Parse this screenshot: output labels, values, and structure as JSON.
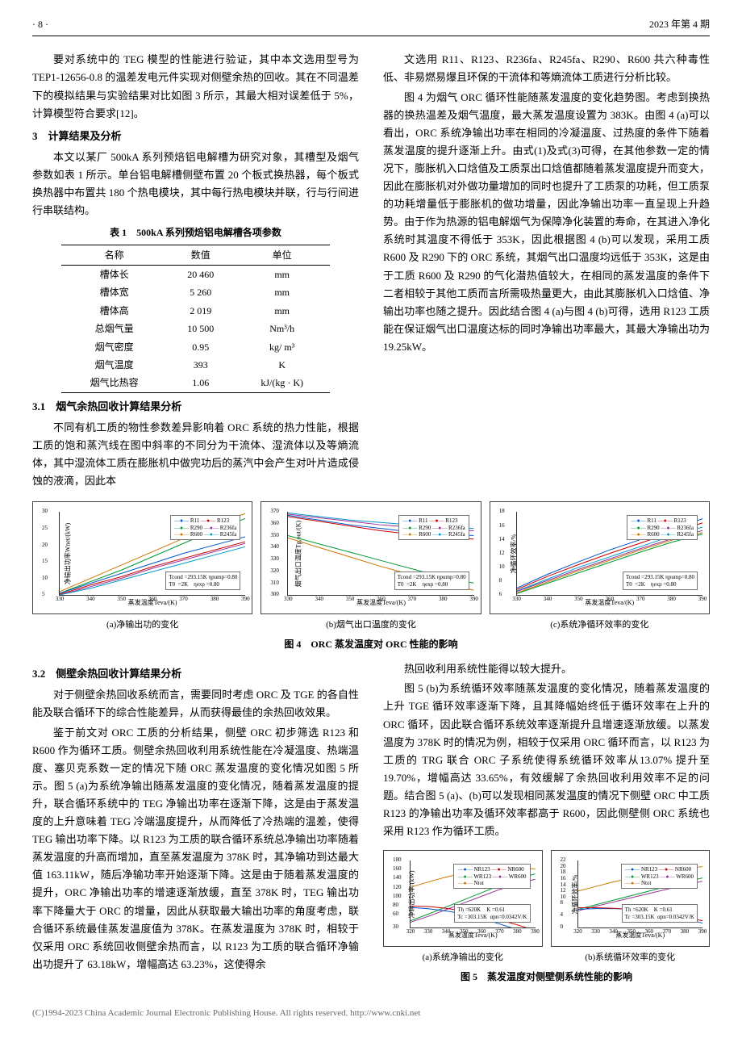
{
  "header": {
    "page_num": "· 8 ·",
    "issue": "2023 年第 4 期"
  },
  "top_left": {
    "p1": "要对系统中的 TEG 模型的性能进行验证，其中本文选用型号为 TEP1-12656-0.8 的温差发电元件实现对侧壁余热的回收。其在不同温差下的模拟结果与实验结果对比如图 3 所示，其最大相对误差低于 5%，计算模型符合要求[12]。",
    "h1": "3　计算结果及分析",
    "p2": "本文以某厂 500kA 系列预焙铝电解槽为研究对象，其槽型及烟气参数如表 1 所示。单台铝电解槽侧壁布置 20 个板式换热器，每个板式换热器中布置共 180 个热电模块，其中每行热电模块并联，行与行间进行串联结构。"
  },
  "table1": {
    "caption": "表 1　500kA 系列预焙铝电解槽各项参数",
    "headers": [
      "名称",
      "数值",
      "单位"
    ],
    "rows": [
      [
        "槽体长",
        "20 460",
        "mm"
      ],
      [
        "槽体宽",
        "5 260",
        "mm"
      ],
      [
        "槽体高",
        "2 019",
        "mm"
      ],
      [
        "总烟气量",
        "10 500",
        "Nm³/h"
      ],
      [
        "烟气密度",
        "0.95",
        "kg/ m³"
      ],
      [
        "烟气温度",
        "393",
        "K"
      ],
      [
        "烟气比热容",
        "1.06",
        "kJ/(kg · K)"
      ]
    ]
  },
  "sec31": {
    "heading": "3.1　烟气余热回收计算结果分析",
    "p1": "不同有机工质的物性参数差异影响着 ORC 系统的热力性能，根据工质的饱和蒸汽线在图中斜率的不同分为干流体、湿流体以及等熵流体，其中湿流体工质在膨胀机中做完功后的蒸汽中会产生对叶片造成侵蚀的液滴，因此本"
  },
  "top_right": {
    "p1": "文选用 R11、R123、R236fa、R245fa、R290、R600 共六种毒性低、非易燃易爆且环保的干流体和等熵流体工质进行分析比较。",
    "p2": "图 4 为烟气 ORC 循环性能随蒸发温度的变化趋势图。考虑到换热器的换热温差及烟气温度，最大蒸发温度设置为 383K。由图 4 (a)可以看出，ORC 系统净输出功率在相同的冷凝温度、过热度的条件下随着蒸发温度的提升逐渐上升。由式(1)及式(3)可得，在其他参数一定的情况下，膨胀机入口焓值及工质泵出口焓值都随着蒸发温度提升而变大，因此在膨胀机对外做功量增加的同时也提升了工质泵的功耗，但工质泵的功耗增量低于膨胀机的做功增量，因此净输出功率一直呈现上升趋势。由于作为热源的铝电解烟气为保障净化装置的寿命，在其进入净化系统时其温度不得低于 353K，因此根据图 4 (b)可以发现，采用工质 R600 及 R290 下的 ORC 系统，其烟气出口温度均远低于 353K，这是由于工质 R600 及 R290 的气化潜热值较大，在相同的蒸发温度的条件下二者相较于其他工质而言所需吸热量更大，由此其膨胀机入口焓值、净输出功率也随之提升。因此结合图 4 (a)与图 4 (b)可得，选用 R123 工质能在保证烟气出口温度达标的同时净输出功率最大，其最大净输出功为 19.25kW。"
  },
  "fig4": {
    "caption": "图 4　ORC 蒸发温度对 ORC 性能的影响",
    "common": {
      "xlabel": "蒸发温度Teva/(K)",
      "xticks": [
        330,
        340,
        350,
        360,
        370,
        380,
        390
      ],
      "legend_items": [
        "R11",
        "R123",
        "R290",
        "R236fa",
        "R600",
        "R245fa"
      ],
      "colors": {
        "R11": "#0055cc",
        "R123": "#cc0000",
        "R290": "#009933",
        "R236fa": "#993399",
        "R600": "#cc7700",
        "R245fa": "#0099cc"
      },
      "annotation": "Tcond =293.15K ηpump=0.80\nT0  =2K    ηexp =0.80"
    },
    "panels": [
      {
        "sub": "(a)净输出功的变化",
        "ylabel": "净输出功率Wnet/(kW)",
        "ylim": [
          5,
          30
        ],
        "yticks": [
          5,
          10,
          15,
          20,
          25,
          30
        ],
        "series": {
          "R600": [
            6,
            10,
            14,
            18,
            22,
            26,
            29.5
          ],
          "R290": [
            5.5,
            9,
            12.5,
            16.5,
            20.5,
            24.5,
            28
          ],
          "R11": [
            5.5,
            8.5,
            11.5,
            14.5,
            17.5,
            20,
            22.5
          ],
          "R123": [
            5.2,
            8,
            10.5,
            13.5,
            16,
            18.5,
            21
          ],
          "R236fa": [
            5,
            7.5,
            10,
            13,
            15.5,
            18,
            20.5
          ],
          "R245fa": [
            5,
            7,
            9.5,
            12,
            14.5,
            17,
            19.5
          ]
        }
      },
      {
        "sub": "(b)烟气出口温度的变化",
        "ylabel": "烟气出口温度Tg,out/(K)",
        "ylim": [
          300,
          370
        ],
        "yticks": [
          300,
          310,
          320,
          330,
          340,
          350,
          360,
          370
        ],
        "series": {
          "R245fa": [
            369,
            366,
            363,
            361,
            359,
            357,
            356
          ],
          "R236fa": [
            368,
            365,
            362,
            359,
            357,
            355,
            354
          ],
          "R11": [
            367,
            363,
            359,
            356,
            353,
            351,
            350
          ],
          "R123": [
            366,
            362,
            358,
            354,
            351,
            349,
            347
          ],
          "R290": [
            350,
            343,
            336,
            329,
            322,
            315,
            310
          ],
          "R600": [
            348,
            340,
            332,
            324,
            317,
            310,
            304
          ]
        }
      },
      {
        "sub": "(c)系统净循环效率的变化",
        "ylabel": "净循环效率/%",
        "ylim": [
          6,
          18
        ],
        "yticks": [
          6,
          8,
          10,
          12,
          14,
          16,
          18
        ],
        "series": {
          "R11": [
            7,
            9,
            10.8,
            12.5,
            14,
            15.5,
            17
          ],
          "R123": [
            6.8,
            8.7,
            10.4,
            12,
            13.5,
            15,
            16.4
          ],
          "R245fa": [
            6.6,
            8.3,
            10,
            11.5,
            13,
            14.5,
            15.8
          ],
          "R236fa": [
            6.5,
            8.1,
            9.7,
            11.2,
            12.7,
            14.1,
            15.3
          ],
          "R600": [
            6.3,
            7.9,
            9.5,
            11,
            12.5,
            13.9,
            15
          ],
          "R290": [
            6.2,
            7.7,
            9.2,
            10.7,
            12.2,
            13.6,
            14.8
          ]
        }
      }
    ]
  },
  "sec32": {
    "heading": "3.2　侧壁余热回收计算结果分析",
    "left": [
      "对于侧壁余热回收系统而言，需要同时考虑 ORC 及 TGE 的各自性能及联合循环下的综合性能差异，从而获得最佳的余热回收效果。",
      "鉴于前文对 ORC 工质的分析结果，侧壁 ORC 初步筛选 R123 和 R600 作为循环工质。侧壁余热回收利用系统性能在冷凝温度、热端温度、塞贝克系数一定的情况下随 ORC 蒸发温度的变化情况如图 5 所示。图 5 (a)为系统净输出随蒸发温度的变化情况，随着蒸发温度的提升，联合循环系统中的 TEG 净输出功率在逐渐下降，这是由于蒸发温度的上升意味着 TEG 冷端温度提升，从而降低了冷热端的温差，使得 TEG 输出功率下降。以 R123 为工质的联合循环系统总净输出功率随着蒸发温度的升高而增加，直至蒸发温度为 378K 时，其净输功到达最大值 163.11kW，随后净输功率开始逐渐下降。这是由于随着蒸发温度的提升，ORC 净输出功率的增速逐渐放缓，直至 378K 时，TEG 输出功率下降量大于 ORC 的增量，因此从获取最大输出功率的角度考虑，联合循环系统最佳蒸发温度值为 378K。在蒸发温度为 378K 时，相较于仅采用 ORC 系统回收侧壁余热而言，以 R123 为工质的联合循环净输出功提升了 63.18kW，增幅高达 63.23%，这使得余"
    ],
    "right": [
      "热回收利用系统性能得以较大提升。",
      "图 5 (b)为系统循环效率随蒸发温度的变化情况，随着蒸发温度的上升 TGE 循环效率逐渐下降，且其降幅始终低于循环效率在上升的 ORC 循环，因此联合循环系统效率逐渐提升且增速逐渐放缓。以蒸发温度为 378K 时的情况为例，相较于仅采用 ORC 循环而言，以 R123 为工质的 TRG 联合 ORC 子系统使得系统循环效率从13.07% 提升至 19.70%，增幅高达 33.65%，有效缓解了余热回收利用效率不足的问题。结合图 5 (a)、(b)可以发现相同蒸发温度的情况下侧壁 ORC 中工质 R123 的净输出功率及循环效率都高于 R600，因此侧壁侧 ORC 系统也采用 R123 作为循环工质。"
    ]
  },
  "fig5": {
    "caption": "图 5　蒸发温度对侧壁侧系统性能的影响",
    "common": {
      "xlabel": "蒸发温度Teva/(K)",
      "xticks": [
        320,
        330,
        340,
        350,
        360,
        370,
        380,
        390
      ],
      "annotation": "Th =620K    K =0.61\nTc =303.15K  αpn=0.0342V/K",
      "legend_items": [
        "NR123",
        "NR600",
        "WR123",
        "WR600",
        "Ntot"
      ],
      "colors": {
        "NR123": "#0055cc",
        "NR600": "#cc0000",
        "WR123": "#009933",
        "WR600": "#993399",
        "Ntot": "#cc7700"
      }
    },
    "panels": [
      {
        "sub": "(a)系统净输出的变化",
        "ylabel": "净输出功率/(kW)",
        "ylim": [
          30,
          180
        ],
        "yticks": [
          30,
          60,
          80,
          100,
          120,
          140,
          160,
          180
        ],
        "series": {
          "Ntot": [
            120,
            132,
            143,
            152,
            158,
            162,
            164,
            161
          ],
          "WR123": [
            45,
            60,
            76,
            92,
            108,
            124,
            139,
            150
          ],
          "WR600": [
            42,
            55,
            70,
            85,
            100,
            115,
            128,
            138
          ],
          "NR123": [
            75,
            72,
            67,
            60,
            50,
            38,
            25,
            11
          ],
          "NR600": [
            78,
            77,
            73,
            67,
            58,
            47,
            36,
            23
          ]
        }
      },
      {
        "sub": "(b)系统循环效率的变化",
        "ylabel": "净循环效率/%",
        "ylim": [
          0,
          22
        ],
        "yticks": [
          0,
          4,
          8,
          10,
          12,
          14,
          16,
          18,
          20,
          22
        ],
        "series": {
          "Ntot": [
            12,
            13.5,
            15,
            16.3,
            17.5,
            18.5,
            19.4,
            20
          ],
          "WR123": [
            6,
            7.5,
            9,
            10.5,
            12,
            13.5,
            15,
            16.3
          ],
          "WR600": [
            5.5,
            7,
            8.4,
            9.8,
            11.2,
            12.6,
            14,
            15.2
          ],
          "NR123": [
            6,
            6.2,
            6.2,
            6.0,
            5.4,
            4.4,
            3.0,
            1.4
          ],
          "NR600": [
            6.5,
            6.5,
            6.3,
            5.9,
            5.2,
            4.3,
            3.3,
            2.2
          ]
        }
      }
    ]
  },
  "footer": "(C)1994-2023 China Academic Journal Electronic Publishing House. All rights reserved.    http://www.cnki.net"
}
